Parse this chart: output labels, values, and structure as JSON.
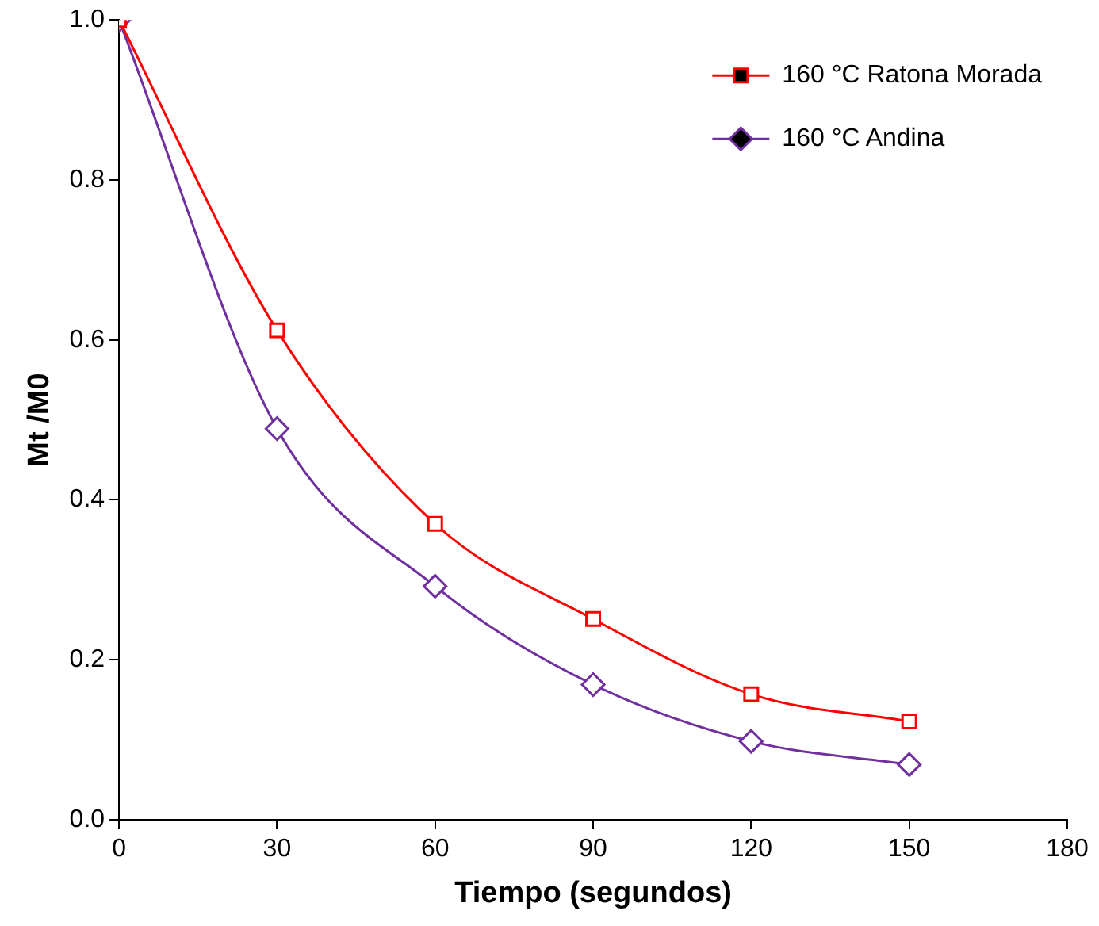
{
  "chart_data": {
    "type": "line",
    "xlabel": "Tiempo (segundos)",
    "ylabel": "Mt /M0",
    "x": [
      0,
      30,
      60,
      90,
      120,
      150
    ],
    "series": [
      {
        "name": "160 °C Ratona Morada",
        "color": "#ff0000",
        "marker": "square",
        "values": [
          1.0,
          0.612,
          0.37,
          0.251,
          0.157,
          0.123
        ]
      },
      {
        "name": "160 °C Andina",
        "color": "#7030a0",
        "marker": "diamond",
        "values": [
          1.0,
          0.489,
          0.292,
          0.169,
          0.098,
          0.069
        ]
      }
    ],
    "xlim": [
      0,
      180
    ],
    "xticks": [
      0,
      30,
      60,
      90,
      120,
      150,
      180
    ],
    "ylim": [
      0,
      1.0
    ],
    "yticks": [
      {
        "value": 0,
        "label": "0.0"
      },
      {
        "value": 0.2,
        "label": "0.2"
      },
      {
        "value": 0.4,
        "label": "0.4"
      },
      {
        "value": 0.6,
        "label": "0.6"
      },
      {
        "value": 0.8,
        "label": "0.8"
      },
      {
        "value": 1.0,
        "label": "1.0"
      }
    ],
    "grid": false,
    "legend": "top right"
  }
}
